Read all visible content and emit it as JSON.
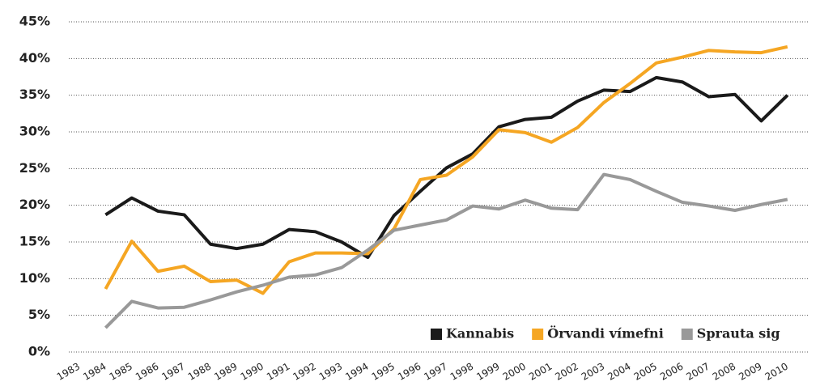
{
  "chart_data": {
    "type": "line",
    "categories": [
      "1983",
      "1984",
      "1985",
      "1986",
      "1987",
      "1988",
      "1989",
      "1990",
      "1991",
      "1992",
      "1993",
      "1994",
      "1995",
      "1996",
      "1997",
      "1998",
      "1999",
      "2000",
      "2001",
      "2002",
      "2003",
      "2004",
      "2005",
      "2006",
      "2007",
      "2008",
      "2009",
      "2010"
    ],
    "series": [
      {
        "name": "Kannabis",
        "color": "#1a1a1a",
        "values": [
          null,
          18.7,
          21.0,
          19.2,
          18.7,
          14.7,
          14.1,
          14.7,
          16.7,
          16.4,
          15.0,
          12.9,
          18.6,
          21.9,
          25.1,
          27.0,
          30.7,
          31.7,
          32.0,
          34.2,
          35.7,
          35.5,
          37.4,
          36.8,
          34.8,
          35.1,
          31.5,
          35.0
        ]
      },
      {
        "name": "Örvandi vímefni",
        "color": "#f5a623",
        "values": [
          null,
          8.6,
          15.1,
          11.0,
          11.7,
          9.6,
          9.8,
          8.0,
          12.3,
          13.5,
          13.5,
          13.4,
          16.8,
          23.5,
          24.1,
          26.6,
          30.3,
          29.9,
          28.6,
          30.6,
          34.0,
          36.6,
          39.4,
          40.2,
          41.1,
          40.9,
          40.8,
          41.6
        ]
      },
      {
        "name": "Sprauta sig",
        "color": "#999999",
        "values": [
          null,
          3.3,
          6.9,
          6.0,
          6.1,
          7.1,
          8.2,
          9.1,
          10.2,
          10.5,
          11.5,
          13.9,
          16.6,
          17.3,
          18.0,
          19.9,
          19.5,
          20.7,
          19.6,
          19.4,
          24.2,
          23.5,
          21.9,
          20.4,
          19.9,
          19.3,
          20.1,
          20.8
        ]
      }
    ],
    "ylim": [
      0,
      45
    ],
    "yticks": [
      {
        "value": 0,
        "label": "0%"
      },
      {
        "value": 5,
        "label": "5%"
      },
      {
        "value": 10,
        "label": "10%"
      },
      {
        "value": 15,
        "label": "15%"
      },
      {
        "value": 20,
        "label": "20%"
      },
      {
        "value": 25,
        "label": "25%"
      },
      {
        "value": 30,
        "label": "30%"
      },
      {
        "value": 35,
        "label": "35%"
      },
      {
        "value": 40,
        "label": "40%"
      },
      {
        "value": 45,
        "label": "45%"
      }
    ],
    "grid": true,
    "legend": "lower right"
  }
}
